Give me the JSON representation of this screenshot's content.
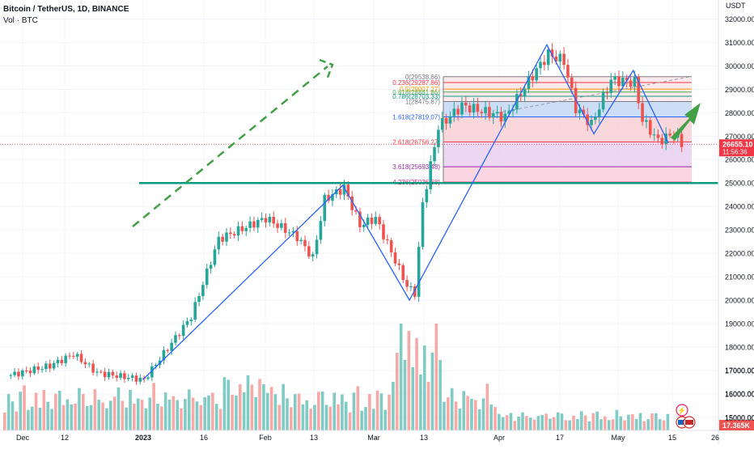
{
  "header": {
    "symbol_line": "Bitcoin / TetherUS, 1D, BINANCE",
    "volume_line": "Vol · BTC"
  },
  "currency": "USDT",
  "colors": {
    "up": "#26a69a",
    "down": "#ef5350",
    "vol_up": "#80cbc4",
    "vol_down": "#f7a9a7",
    "pattern_line": "#2962ff",
    "support_line": "#089981",
    "arrow": "#43a047",
    "fib_red_zone": "#f8c9cf",
    "fib_blue_zone": "#c7daf5",
    "fib_purple_zone": "#e9d3f0",
    "fib_pink_zone": "#f9d2df",
    "price_tag": "#f23645",
    "volume_tag": "#ef5350"
  },
  "chart_data": {
    "type": "candlestick",
    "title": "Bitcoin / TetherUS, 1D, BINANCE",
    "y_axis": {
      "label": "USDT",
      "range": [
        14500,
        32500
      ],
      "ticks": [
        15000,
        16000,
        17000,
        18000,
        19000,
        20000,
        21000,
        22000,
        23000,
        24000,
        25000,
        26000,
        27000,
        28000,
        29000,
        30000,
        31000,
        32000
      ]
    },
    "x_axis": {
      "ticks": [
        "Dec",
        "12",
        "2023",
        "16",
        "Feb",
        "13",
        "Mar",
        "13",
        "Apr",
        "17",
        "May",
        "15",
        "26"
      ]
    },
    "price_path": [
      {
        "date": "Nov 28",
        "price": 16800
      },
      {
        "date": "Dec 8",
        "price": 17200
      },
      {
        "date": "Dec 14",
        "price": 17700
      },
      {
        "date": "Dec 20",
        "price": 16900
      },
      {
        "date": "Jan 1",
        "price": 16600
      },
      {
        "date": "Jan 13",
        "price": 19300
      },
      {
        "date": "Jan 20",
        "price": 22600
      },
      {
        "date": "Feb 1",
        "price": 23500
      },
      {
        "date": "Feb 9",
        "price": 22700
      },
      {
        "date": "Feb 13",
        "price": 21800
      },
      {
        "date": "Feb 16",
        "price": 24300
      },
      {
        "date": "Feb 21",
        "price": 24800
      },
      {
        "date": "Feb 25",
        "price": 23200
      },
      {
        "date": "Mar 1",
        "price": 23500
      },
      {
        "date": "Mar 9",
        "price": 20600
      },
      {
        "date": "Mar 11",
        "price": 20300
      },
      {
        "date": "Mar 13",
        "price": 24100
      },
      {
        "date": "Mar 17",
        "price": 27400
      },
      {
        "date": "Mar 23",
        "price": 28300
      },
      {
        "date": "Apr 3",
        "price": 27800
      },
      {
        "date": "Apr 10",
        "price": 29600
      },
      {
        "date": "Apr 14",
        "price": 30500
      },
      {
        "date": "Apr 18",
        "price": 30200
      },
      {
        "date": "Apr 21",
        "price": 28200
      },
      {
        "date": "Apr 25",
        "price": 27500
      },
      {
        "date": "Apr 30",
        "price": 29400
      },
      {
        "date": "May 6",
        "price": 29300
      },
      {
        "date": "May 8",
        "price": 27700
      },
      {
        "date": "May 12",
        "price": 26800
      },
      {
        "date": "May 16",
        "price": 27100
      },
      {
        "date": "May 18",
        "price": 26655
      }
    ],
    "last_price": "26655.10",
    "countdown": "11:56:36",
    "last_volume": "17.365K",
    "support_level": 25000,
    "fibonacci": [
      {
        "label": "0(29538.66)",
        "value": 29538.66
      },
      {
        "label": "0.236(29287.86)",
        "value": 29287.86
      },
      {
        "label": "0.5(29007.27)",
        "value": 29007.27
      },
      {
        "label": "0.618(28881.86)",
        "value": 28881.86
      },
      {
        "label": "0.786(28703.33)",
        "value": 28703.33
      },
      {
        "label": "1(28475.87)",
        "value": 28475.87
      },
      {
        "label": "1.618(27819.07)",
        "value": 27819.07
      },
      {
        "label": "2.618(26756.27)",
        "value": 26756.27
      },
      {
        "label": "3.618(25693.48)",
        "value": 25693.48
      },
      {
        "label": "4.236(25036.68)",
        "value": 25036.68
      }
    ],
    "zigzag": [
      {
        "date": "Jan 1",
        "price": 16600
      },
      {
        "date": "Feb 21",
        "price": 24900
      },
      {
        "date": "Mar 10",
        "price": 20000
      },
      {
        "date": "Apr 14",
        "price": 30900
      },
      {
        "date": "Apr 26",
        "price": 27100
      },
      {
        "date": "May 6",
        "price": 29800
      },
      {
        "date": "May 15",
        "price": 26700
      }
    ],
    "volume_scale": {
      "ticks": [
        "15000.00",
        "16000.00",
        "17000.00"
      ]
    }
  }
}
